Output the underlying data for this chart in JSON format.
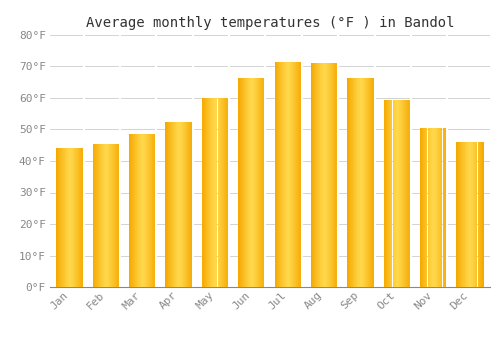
{
  "title": "Average monthly temperatures (°F ) in Bandol",
  "months": [
    "Jan",
    "Feb",
    "Mar",
    "Apr",
    "May",
    "Jun",
    "Jul",
    "Aug",
    "Sep",
    "Oct",
    "Nov",
    "Dec"
  ],
  "values": [
    44,
    45.5,
    48.5,
    52.5,
    60,
    66.5,
    71.5,
    71,
    66.5,
    59.5,
    50.5,
    46
  ],
  "bar_color_left": "#F5A800",
  "bar_color_center": "#FFD84C",
  "bar_color_right": "#F5A800",
  "background_color": "#FFFFFF",
  "grid_color": "#CCCCCC",
  "ylim": [
    0,
    80
  ],
  "yticks": [
    0,
    10,
    20,
    30,
    40,
    50,
    60,
    70,
    80
  ],
  "title_fontsize": 10,
  "tick_fontsize": 8,
  "tick_color": "#888888",
  "axis_color": "#333333",
  "font_family": "monospace"
}
